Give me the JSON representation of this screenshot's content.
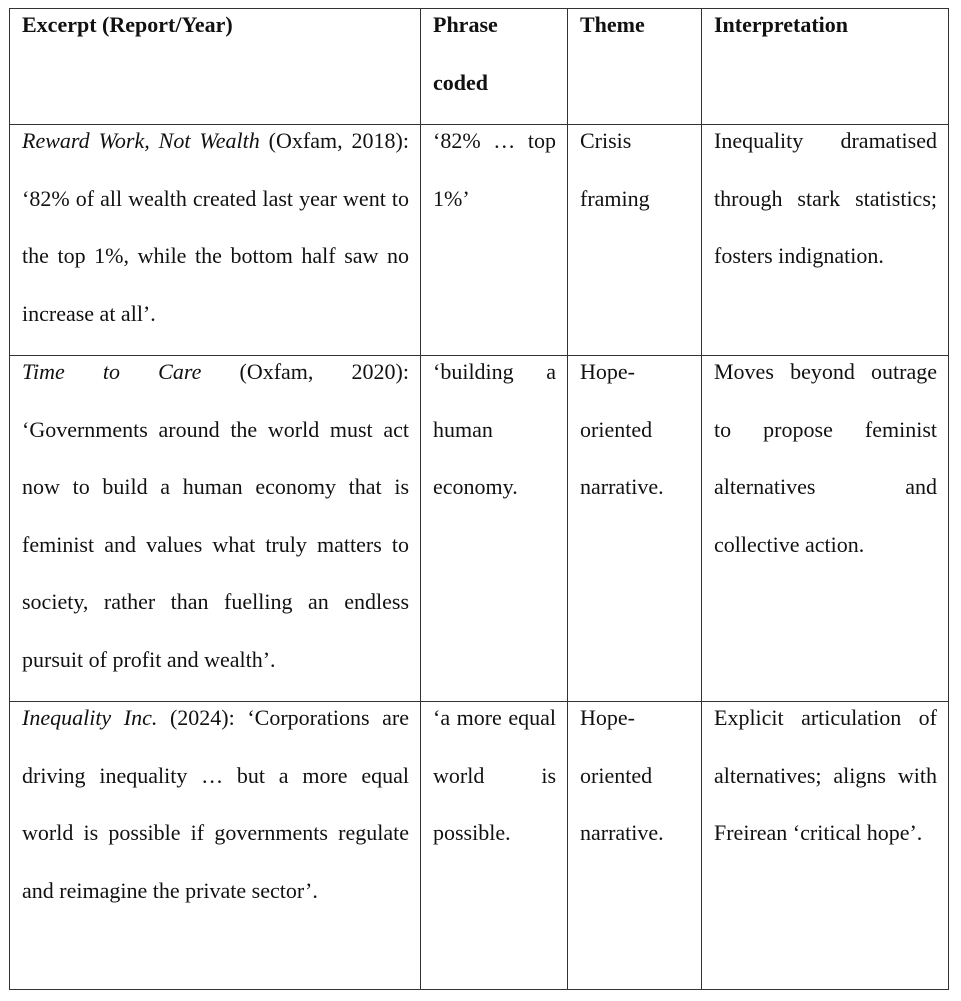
{
  "headers": [
    "Excerpt (Report/Year)",
    "Phrase coded",
    "Theme",
    "Interpretation"
  ],
  "rows": [
    {
      "excerpt": [
        {
          "text": "Reward Work, Not Wealth",
          "italic": true
        },
        {
          "text": " (Oxfam, 2018): ‘82% of all wealth created last year went to the top 1%, while the bottom half saw no increase at all’.",
          "italic": false
        }
      ],
      "phrase": "‘82% … top 1%’",
      "theme": "Crisis framing",
      "interpretation": "Inequality dramatised through stark statistics; fosters indignation."
    },
    {
      "excerpt": [
        {
          "text": "Time to Care",
          "italic": true
        },
        {
          "text": " (Oxfam, 2020): ‘Governments around the world must act now to build a human economy that is feminist and values what truly matters to society, rather than fuelling an endless pursuit of profit and wealth’.",
          "italic": false
        }
      ],
      "phrase": "‘building a human economy.",
      "theme": "Hope-oriented narrative.",
      "interpretation": "Moves beyond outrage to propose feminist alternatives and collective action."
    },
    {
      "excerpt": [
        {
          "text": "Inequality Inc.",
          "italic": true
        },
        {
          "text": " (2024): ‘Corporations are driving inequality … but a more equal world is possible if governments regulate and reimagine the private sector’.",
          "italic": false
        }
      ],
      "phrase": "‘a more equal world is possible.",
      "theme": "Hope-oriented narrative.",
      "interpretation": "Explicit articulation of alternatives; aligns with Freirean ‘critical hope’."
    }
  ]
}
